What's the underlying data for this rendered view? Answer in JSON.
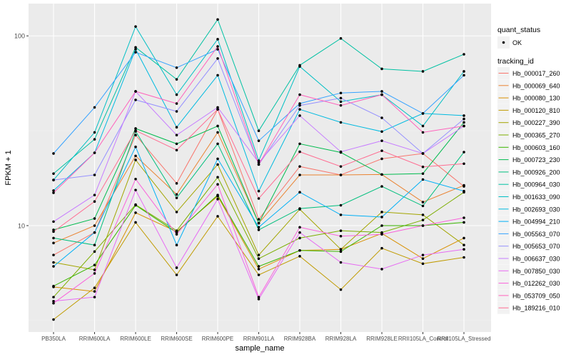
{
  "chart_data": {
    "type": "line",
    "title": "",
    "xlabel": "sample_name",
    "ylabel": "FPKM + 1",
    "yscale": "log10",
    "ylim": [
      2.75,
      148
    ],
    "yticks": [
      {
        "value": 10,
        "label": "10"
      },
      {
        "value": 100,
        "label": "100"
      }
    ],
    "grid": true,
    "legend_position": "right",
    "categories": [
      "PB350LA",
      "RRIM600LA",
      "RRIM600LE",
      "RRIM600SE",
      "RRIM600PE",
      "RRIM901LA",
      "RRIM928BA",
      "RRIM928LA",
      "RRIM928LE",
      "RRII105LA_Control",
      "RRII105LA_Stressed"
    ],
    "shape_legend": {
      "title": "quant_status",
      "entries": [
        "OK"
      ]
    },
    "color_legend_title": "tracking_id",
    "series": [
      {
        "name": "Hb_000017_260",
        "color": "#F8766D",
        "values": [
          7.0,
          9.2,
          30,
          16.7,
          41,
          10.8,
          20.5,
          18.5,
          22.5,
          24,
          16.1
        ]
      },
      {
        "name": "Hb_000069_640",
        "color": "#EA8331",
        "values": [
          8.1,
          10,
          23.3,
          14.6,
          31,
          10.3,
          18.5,
          18.5,
          18.6,
          13.3,
          16.3
        ]
      },
      {
        "name": "Hb_000080_130",
        "color": "#D89000",
        "values": [
          4.75,
          4.5,
          11.7,
          9.3,
          14.3,
          5.9,
          7.4,
          7.5,
          9.1,
          6.7,
          8.6
        ]
      },
      {
        "name": "Hb_000120_810",
        "color": "#C09B00",
        "values": [
          3.2,
          4.7,
          10.4,
          5.5,
          11.2,
          5.5,
          6.9,
          4.6,
          7.6,
          6.3,
          6.8
        ]
      },
      {
        "name": "Hb_000227_390",
        "color": "#A3A500",
        "values": [
          6.4,
          5.85,
          22.2,
          11.8,
          21,
          7.0,
          12.2,
          7.5,
          11.8,
          11.4,
          7.9
        ]
      },
      {
        "name": "Hb_000365_270",
        "color": "#7CAE00",
        "values": [
          4.2,
          7.3,
          12.9,
          9.4,
          18,
          6.7,
          8.6,
          9.4,
          9.2,
          10.7,
          15
        ]
      },
      {
        "name": "Hb_000603_160",
        "color": "#39B600",
        "values": [
          4.8,
          6.2,
          12.8,
          9.2,
          14.5,
          6.1,
          7.4,
          7.3,
          10,
          10,
          10.4
        ]
      },
      {
        "name": "Hb_000723_230",
        "color": "#00BB4E",
        "values": [
          9.5,
          10.9,
          32.5,
          27,
          33.5,
          10.3,
          27,
          24.3,
          18.6,
          18.8,
          35
        ]
      },
      {
        "name": "Hb_000926_200",
        "color": "#00BF7D",
        "values": [
          8.6,
          7.9,
          31.4,
          14.0,
          27,
          9.5,
          12.3,
          12.8,
          16.1,
          12.7,
          24.4
        ]
      },
      {
        "name": "Hb_000964_030",
        "color": "#00C1A3",
        "values": [
          18.8,
          28.5,
          87,
          59,
          122,
          31.6,
          70,
          97,
          67,
          65,
          80
        ]
      },
      {
        "name": "Hb_001633_090",
        "color": "#00BFC4",
        "values": [
          17.4,
          31,
          112,
          49,
          96,
          22,
          69,
          45,
          49,
          33.5,
          65
        ]
      },
      {
        "name": "Hb_002693_030",
        "color": "#00BAE0",
        "values": [
          15.3,
          24.2,
          85,
          33,
          62,
          15.2,
          41,
          35,
          31.3,
          39,
          38
        ]
      },
      {
        "name": "Hb_004994_210",
        "color": "#00B0F6",
        "values": [
          6.1,
          9.2,
          26,
          7.9,
          22.5,
          9.8,
          15,
          11.4,
          11.1,
          17.5,
          15.2
        ]
      },
      {
        "name": "Hb_005563_070",
        "color": "#35A2FF",
        "values": [
          24,
          42,
          82,
          68,
          85,
          28,
          44,
          50,
          51,
          39,
          62
        ]
      },
      {
        "name": "Hb_005653_070",
        "color": "#9590FF",
        "values": [
          17.4,
          18.5,
          46,
          40,
          76,
          21,
          43,
          47,
          37,
          24,
          36.5
        ]
      },
      {
        "name": "Hb_006637_030",
        "color": "#C77CFF",
        "values": [
          10.5,
          14.5,
          51,
          30,
          42,
          21.5,
          38,
          24.5,
          28,
          24,
          33.5
        ]
      },
      {
        "name": "Hb_007850_030",
        "color": "#E76BF3",
        "values": [
          4.0,
          4.2,
          15.4,
          6.0,
          13.8,
          4.1,
          9.2,
          6.4,
          5.9,
          7.0,
          7.5
        ]
      },
      {
        "name": "Hb_012262_030",
        "color": "#FA62DB",
        "values": [
          3.9,
          5.6,
          17.6,
          9.0,
          16.5,
          4.2,
          9.8,
          8.8,
          9.0,
          10.0,
          11.0
        ]
      },
      {
        "name": "Hb_053709_050",
        "color": "#FF62BC",
        "values": [
          14.9,
          24.2,
          51,
          44,
          88,
          21,
          49,
          43,
          49,
          31,
          33.5
        ]
      },
      {
        "name": "Hb_189216_010",
        "color": "#FF6C91",
        "values": [
          9.3,
          13.4,
          31.7,
          25,
          41,
          13.9,
          24.5,
          20.5,
          24.8,
          20.4,
          21.2
        ]
      }
    ]
  }
}
